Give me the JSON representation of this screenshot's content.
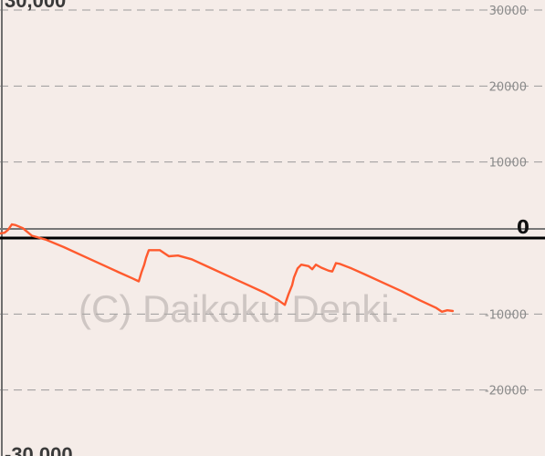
{
  "watermark": "(C) Daikoku Denki.",
  "chart_data": {
    "type": "line",
    "ylim": [
      -30000,
      30000
    ],
    "grid": true,
    "left_labels": {
      "top": "30,000",
      "bottom": "-30,000"
    },
    "right_tick_labels": [
      "30000",
      "20000",
      "10000",
      "0",
      "-10000",
      "-20000"
    ],
    "tick_values": [
      30000,
      20000,
      10000,
      0,
      -10000,
      -20000
    ],
    "zero_label": "0",
    "series_color": "#ff5a2e",
    "series": [
      {
        "values": [
          [
            0,
            600
          ],
          [
            5,
            700
          ],
          [
            9,
            1100
          ],
          [
            13,
            1800
          ],
          [
            17,
            1700
          ],
          [
            25,
            1300
          ],
          [
            35,
            300
          ],
          [
            50,
            -200
          ],
          [
            70,
            -1200
          ],
          [
            90,
            -2300
          ],
          [
            110,
            -3400
          ],
          [
            130,
            -4500
          ],
          [
            145,
            -5300
          ],
          [
            152,
            -5700
          ],
          [
            155,
            -4500
          ],
          [
            158,
            -3500
          ],
          [
            160,
            -2600
          ],
          [
            163,
            -1600
          ],
          [
            175,
            -1600
          ],
          [
            185,
            -2400
          ],
          [
            195,
            -2300
          ],
          [
            210,
            -2800
          ],
          [
            230,
            -3900
          ],
          [
            250,
            -5000
          ],
          [
            270,
            -6100
          ],
          [
            290,
            -7200
          ],
          [
            305,
            -8200
          ],
          [
            312,
            -8800
          ],
          [
            316,
            -7400
          ],
          [
            320,
            -6200
          ],
          [
            322,
            -5200
          ],
          [
            326,
            -4000
          ],
          [
            330,
            -3500
          ],
          [
            338,
            -3700
          ],
          [
            342,
            -4100
          ],
          [
            346,
            -3500
          ],
          [
            352,
            -3900
          ],
          [
            360,
            -4300
          ],
          [
            364,
            -4400
          ],
          [
            368,
            -3300
          ],
          [
            372,
            -3400
          ],
          [
            385,
            -4000
          ],
          [
            400,
            -4800
          ],
          [
            420,
            -5900
          ],
          [
            440,
            -7000
          ],
          [
            460,
            -8200
          ],
          [
            478,
            -9200
          ],
          [
            484,
            -9700
          ],
          [
            490,
            -9500
          ],
          [
            496,
            -9600
          ]
        ]
      }
    ]
  }
}
